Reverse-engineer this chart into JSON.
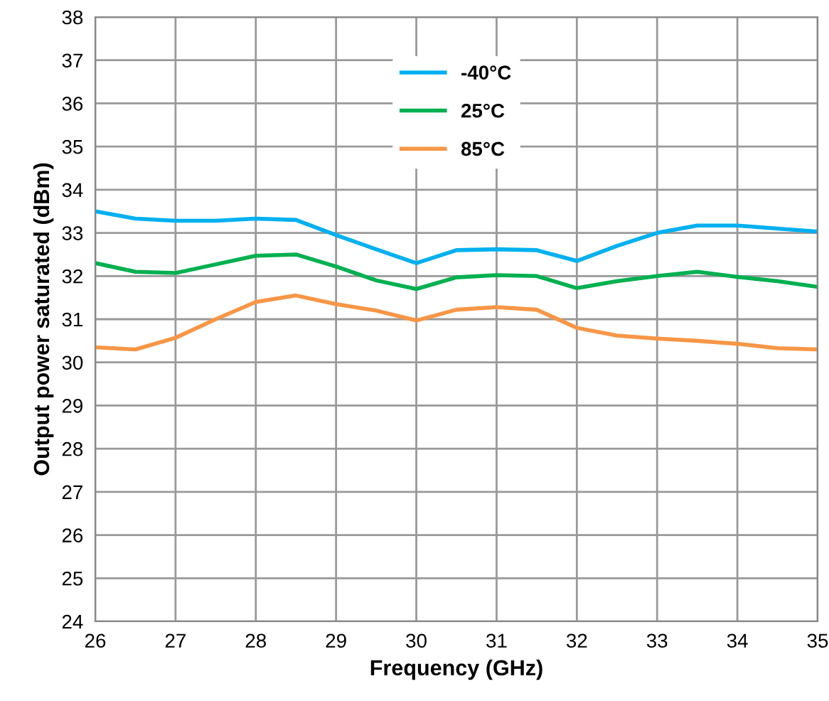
{
  "chart_data": {
    "type": "line",
    "xlabel": "Frequency (GHz)",
    "ylabel": "Output power saturated (dBm)",
    "x": [
      26,
      26.5,
      27,
      27.5,
      28,
      28.5,
      29,
      29.5,
      30,
      30.5,
      31,
      31.5,
      32,
      32.5,
      33,
      33.5,
      34,
      34.5,
      35
    ],
    "series": [
      {
        "name": "-40°C",
        "color": "#00b0f0",
        "values": [
          33.5,
          33.33,
          33.28,
          33.28,
          33.33,
          33.3,
          32.95,
          32.62,
          32.3,
          32.6,
          32.62,
          32.6,
          32.35,
          32.7,
          33.0,
          33.17,
          33.17,
          33.1,
          33.03
        ]
      },
      {
        "name": "25°C",
        "color": "#00b050",
        "values": [
          32.3,
          32.1,
          32.07,
          32.27,
          32.47,
          32.5,
          32.22,
          31.9,
          31.7,
          31.97,
          32.02,
          32.0,
          31.72,
          31.88,
          32.0,
          32.1,
          31.98,
          31.88,
          31.75
        ]
      },
      {
        "name": "85°C",
        "color": "#f79646",
        "values": [
          30.35,
          30.3,
          30.57,
          31.0,
          31.4,
          31.55,
          31.35,
          31.2,
          30.97,
          31.22,
          31.28,
          31.22,
          30.8,
          30.62,
          30.55,
          30.5,
          30.43,
          30.33,
          30.3
        ]
      }
    ],
    "xlim": [
      26,
      35
    ],
    "xticks": [
      26,
      27,
      28,
      29,
      30,
      31,
      32,
      33,
      34,
      35
    ],
    "ylim": [
      24,
      38
    ],
    "yticks": [
      24,
      25,
      26,
      27,
      28,
      29,
      30,
      31,
      32,
      33,
      34,
      35,
      36,
      37,
      38
    ],
    "grid": true,
    "legend": "top",
    "marker": "none",
    "line_style": "solid"
  }
}
